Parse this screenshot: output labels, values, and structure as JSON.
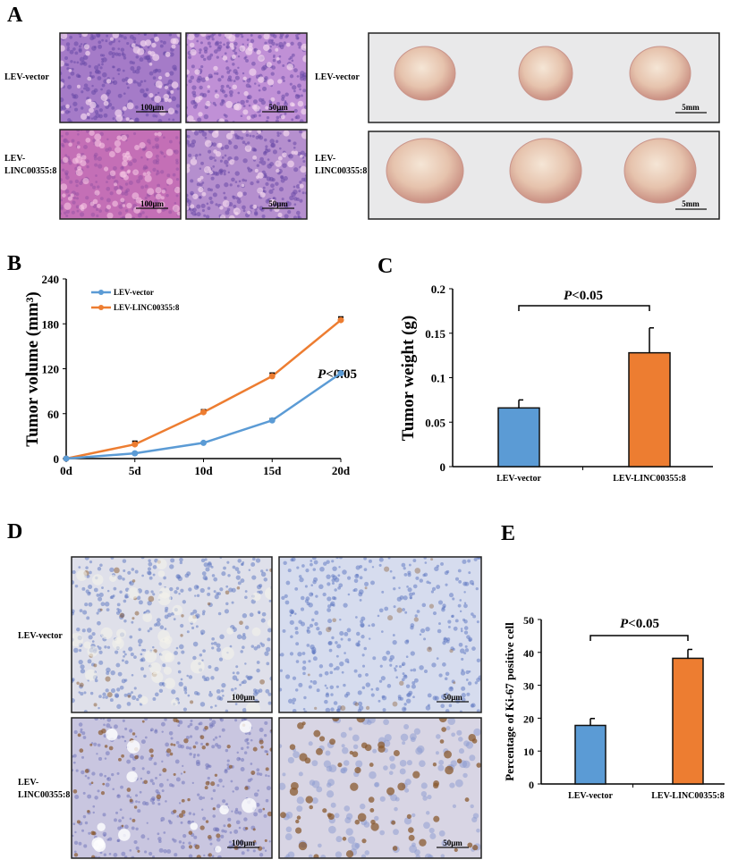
{
  "panel_labels": {
    "a": "A",
    "b": "B",
    "c": "C",
    "d": "D",
    "e": "E"
  },
  "panel_a": {
    "row_labels": [
      [
        "LEV-vector"
      ],
      [
        "LEV-",
        "LINC00355:8"
      ]
    ],
    "scale_bars": {
      "low_mag": "100μm",
      "high_mag": "50μm",
      "photo": "5mm"
    },
    "colors": {
      "he_stain": "#c46fb6",
      "tumor": "#e8c9b4",
      "photo_bg": "#e9e9ea"
    }
  },
  "panel_d": {
    "row_labels": [
      [
        "LEV-vector"
      ],
      [
        "LEV-",
        "LINC00355:8"
      ]
    ],
    "scale_bars": {
      "low_mag": "100μm",
      "high_mag": "50μm"
    },
    "colors": {
      "ihc_bg": "#d4d9ec",
      "nuclei_blue": "#5a74c0",
      "ki67_brown": "#8a5a30"
    }
  },
  "chart_data": [
    {
      "panel": "B",
      "type": "line",
      "categories": [
        "0d",
        "5d",
        "10d",
        "15d",
        "20d"
      ],
      "ylabel": "Tumor volume (mm³)",
      "ylim": [
        0,
        240
      ],
      "yticks": [
        "0",
        "60",
        "120",
        "180",
        "240"
      ],
      "grid": false,
      "legend_position": "top-left",
      "series": [
        {
          "name": "LEV-vector",
          "color": "#5b9bd5",
          "values": [
            0,
            7,
            21,
            51,
            114
          ],
          "errors": [
            0,
            1,
            1,
            2,
            3
          ]
        },
        {
          "name": "LEV-LINC00355:8",
          "color": "#ed7d31",
          "values": [
            0,
            19,
            62,
            110,
            185
          ],
          "errors": [
            0,
            4,
            3,
            4,
            4
          ]
        }
      ],
      "significance": {
        "symbol": "P",
        "text": "<0.05"
      }
    },
    {
      "panel": "C",
      "type": "bar",
      "categories": [
        "LEV-vector",
        "LEV-LINC00355:8"
      ],
      "values": [
        0.066,
        0.128
      ],
      "errors": [
        0.009,
        0.028
      ],
      "colors": [
        "#5b9bd5",
        "#ed7d31"
      ],
      "ylabel": "Tumor weight (g)",
      "ylim": [
        0,
        0.2
      ],
      "yticks": [
        "0",
        "0.05",
        "0.1",
        "0.15",
        "0.2"
      ],
      "grid": false,
      "significance": {
        "symbol": "P",
        "text": "<0.05"
      }
    },
    {
      "panel": "E",
      "type": "bar",
      "categories": [
        "LEV-vector",
        "LEV-LINC00355:8"
      ],
      "values": [
        17.8,
        38.2
      ],
      "errors": [
        2.1,
        2.7
      ],
      "colors": [
        "#5b9bd5",
        "#ed7d31"
      ],
      "ylabel": "Percentage  of Ki-67 positive  cell",
      "ylim": [
        0,
        50
      ],
      "yticks": [
        "0",
        "10",
        "20",
        "30",
        "40",
        "50"
      ],
      "grid": false,
      "significance": {
        "symbol": "P",
        "text": "<0.05"
      }
    }
  ]
}
